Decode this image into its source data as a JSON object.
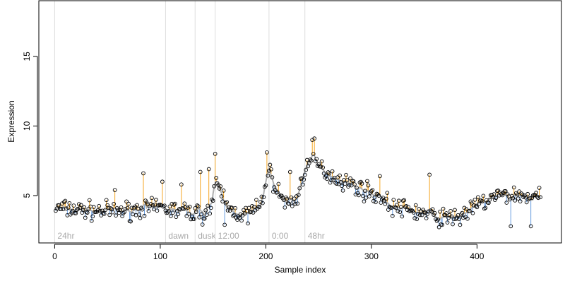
{
  "chart_data": {
    "type": "scatter",
    "title": "",
    "xlabel": "Sample index",
    "ylabel": "Expression",
    "xlim": [
      -15,
      480
    ],
    "ylim": [
      1.6,
      19
    ],
    "xticks": [
      0,
      100,
      200,
      300,
      400
    ],
    "yticks": [
      5,
      10,
      15
    ],
    "grid": false,
    "legend": "none",
    "colors": {
      "points_edge": "#000000",
      "above_fit": "#f5a623",
      "below_fit": "#6a9ee0",
      "fit_line": "#b0b0b0",
      "marker_line": "#dddddd",
      "marker_text": "#a8a8a8"
    },
    "markers": [
      {
        "label": "24hr",
        "x": 0
      },
      {
        "label": "dawn",
        "x": 105
      },
      {
        "label": "dusk",
        "x": 133
      },
      {
        "label": "12:00",
        "x": 152
      },
      {
        "label": "0:00",
        "x": 203
      },
      {
        "label": "48hr",
        "x": 237
      }
    ],
    "trend": [
      {
        "x": 0,
        "y": 4.1
      },
      {
        "x": 20,
        "y": 4.0
      },
      {
        "x": 40,
        "y": 3.9
      },
      {
        "x": 60,
        "y": 3.9
      },
      {
        "x": 80,
        "y": 4.0
      },
      {
        "x": 100,
        "y": 4.1
      },
      {
        "x": 120,
        "y": 3.9
      },
      {
        "x": 140,
        "y": 3.7
      },
      {
        "x": 148,
        "y": 4.0
      },
      {
        "x": 152,
        "y": 5.8
      },
      {
        "x": 158,
        "y": 5.2
      },
      {
        "x": 165,
        "y": 4.0
      },
      {
        "x": 180,
        "y": 3.6
      },
      {
        "x": 195,
        "y": 4.2
      },
      {
        "x": 203,
        "y": 6.8
      },
      {
        "x": 210,
        "y": 5.4
      },
      {
        "x": 220,
        "y": 4.4
      },
      {
        "x": 230,
        "y": 4.8
      },
      {
        "x": 237,
        "y": 7.0
      },
      {
        "x": 245,
        "y": 7.6
      },
      {
        "x": 252,
        "y": 7.0
      },
      {
        "x": 260,
        "y": 6.5
      },
      {
        "x": 275,
        "y": 6.0
      },
      {
        "x": 290,
        "y": 5.5
      },
      {
        "x": 305,
        "y": 5.0
      },
      {
        "x": 320,
        "y": 4.2
      },
      {
        "x": 340,
        "y": 3.9
      },
      {
        "x": 360,
        "y": 3.5
      },
      {
        "x": 375,
        "y": 3.4
      },
      {
        "x": 390,
        "y": 3.8
      },
      {
        "x": 405,
        "y": 4.5
      },
      {
        "x": 420,
        "y": 5.0
      },
      {
        "x": 440,
        "y": 5.0
      },
      {
        "x": 460,
        "y": 4.8
      }
    ],
    "outliers": [
      {
        "x": 57,
        "y": 5.4
      },
      {
        "x": 84,
        "y": 6.6
      },
      {
        "x": 102,
        "y": 6.0
      },
      {
        "x": 120,
        "y": 5.8
      },
      {
        "x": 138,
        "y": 6.7
      },
      {
        "x": 146,
        "y": 6.9
      },
      {
        "x": 152,
        "y": 8.0
      },
      {
        "x": 201,
        "y": 8.1
      },
      {
        "x": 223,
        "y": 6.7
      },
      {
        "x": 244,
        "y": 9.0
      },
      {
        "x": 246,
        "y": 9.1
      },
      {
        "x": 308,
        "y": 6.4
      },
      {
        "x": 355,
        "y": 6.5
      },
      {
        "x": 367,
        "y": 2.9
      },
      {
        "x": 384,
        "y": 2.9
      },
      {
        "x": 432,
        "y": 2.8
      },
      {
        "x": 451,
        "y": 2.8
      },
      {
        "x": 456,
        "y": 5.2
      },
      {
        "x": 161,
        "y": 2.9
      },
      {
        "x": 183,
        "y": 3.0
      }
    ],
    "n_points": 460,
    "noise": 0.55
  }
}
